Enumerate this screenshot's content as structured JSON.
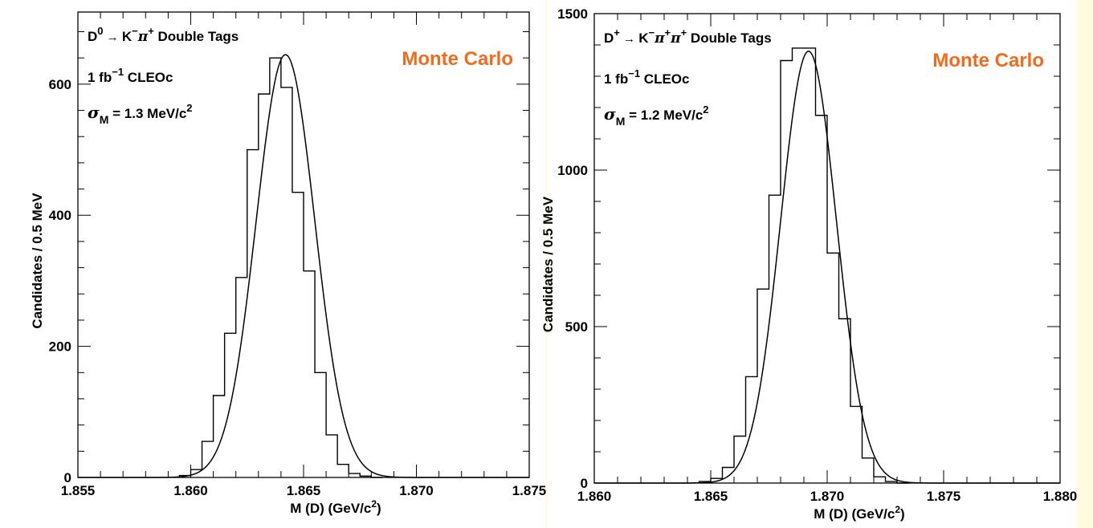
{
  "colors": {
    "page_background": "#FFFBDF",
    "plot_background": "#FFFFFF",
    "monte_carlo": "#F26B1D",
    "lines": "#000000"
  },
  "chart_data": [
    {
      "type": "histogram_with_fit",
      "panel": "left",
      "xlabel": "M (D) (GeV/c²)",
      "ylabel": "Candidates / 0.5 MeV",
      "xlim": [
        1.855,
        1.875
      ],
      "ylim": [
        0,
        710
      ],
      "xticks": [
        1.855,
        1.86,
        1.865,
        1.87,
        1.875
      ],
      "xtick_labels": [
        "1.855",
        "1.860",
        "1.865",
        "1.870",
        "1.875"
      ],
      "yticks": [
        0,
        200,
        400,
        600
      ],
      "ytick_labels": [
        "0",
        "200",
        "400",
        "600"
      ],
      "bin_width": 0.0005,
      "bin_low_edges": [
        1.8595,
        1.86,
        1.8605,
        1.861,
        1.8615,
        1.862,
        1.8625,
        1.863,
        1.8635,
        1.864,
        1.8645,
        1.865,
        1.8655,
        1.866,
        1.8665,
        1.867,
        1.8675,
        1.868
      ],
      "bin_values": [
        3,
        12,
        55,
        125,
        220,
        305,
        500,
        585,
        640,
        595,
        435,
        315,
        160,
        65,
        20,
        6,
        2,
        0
      ],
      "fit": {
        "mean": 1.8642,
        "sigma": 0.0013,
        "peak": 645
      },
      "annotation": {
        "decay": {
          "parent": "D",
          "parent_sup": "0",
          "arrow": "→",
          "k": "K",
          "k_sup": "−",
          "pi1": "π",
          "pi1_sup": "+",
          "tail": "Double Tags"
        },
        "lumi": {
          "prefix": "1 fb",
          "sup": "−1",
          "suffix": "CLEOc"
        },
        "sigma": {
          "symbol": "σ",
          "sub": "M",
          "text": "= 1.3 MeV/c",
          "sup": "2"
        },
        "monte_carlo": "Monte Carlo"
      }
    },
    {
      "type": "histogram_with_fit",
      "panel": "right",
      "xlabel": "M (D) (GeV/c²)",
      "ylabel": "Candidates / 0.5 MeV",
      "xlim": [
        1.86,
        1.88
      ],
      "ylim": [
        0,
        1500
      ],
      "xticks": [
        1.86,
        1.865,
        1.87,
        1.875,
        1.88
      ],
      "xtick_labels": [
        "1.860",
        "1.865",
        "1.870",
        "1.875",
        "1.880"
      ],
      "yticks": [
        0,
        500,
        1000,
        1500
      ],
      "ytick_labels": [
        "0",
        "500",
        "1000",
        "1500"
      ],
      "bin_width": 0.0005,
      "bin_low_edges": [
        1.8645,
        1.865,
        1.8655,
        1.866,
        1.8665,
        1.867,
        1.8675,
        1.868,
        1.8685,
        1.869,
        1.8695,
        1.87,
        1.8705,
        1.871,
        1.8715,
        1.872,
        1.8725,
        1.873
      ],
      "bin_values": [
        5,
        15,
        50,
        150,
        340,
        620,
        920,
        1350,
        1390,
        1390,
        1175,
        735,
        525,
        245,
        80,
        20,
        5,
        0
      ],
      "fit": {
        "mean": 1.8692,
        "sigma": 0.0012,
        "peak": 1380
      },
      "annotation": {
        "decay": {
          "parent": "D",
          "parent_sup": "+",
          "arrow": "→",
          "k": "K",
          "k_sup": "−",
          "pi1": "π",
          "pi1_sup": "+",
          "pi2": "π",
          "pi2_sup": "+",
          "tail": "Double Tags"
        },
        "lumi": {
          "prefix": "1 fb",
          "sup": "−1",
          "suffix": "CLEOc"
        },
        "sigma": {
          "symbol": "σ",
          "sub": "M",
          "text": "= 1.2 MeV/c",
          "sup": "2"
        },
        "monte_carlo": "Monte Carlo"
      }
    }
  ]
}
